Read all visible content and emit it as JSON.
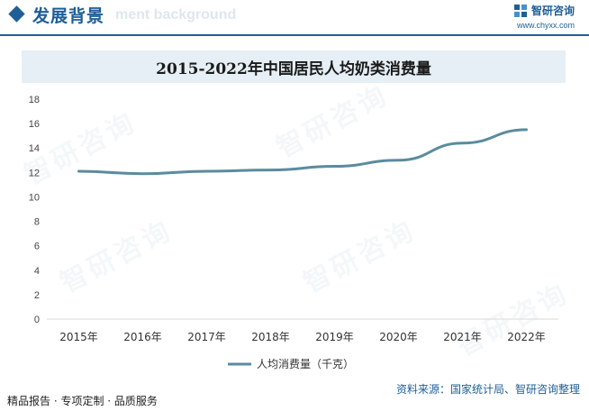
{
  "header": {
    "title": "发展背景",
    "subtitle": "ment background",
    "brand_name": "智研咨询",
    "brand_url": "www.chyxx.com"
  },
  "footer": {
    "left": "精品报告 · 专项定制 · 品质服务",
    "source": "资料来源：国家统计局、智研咨询整理"
  },
  "watermark_text": "智研咨询",
  "colors": {
    "accent": "#1f5f97",
    "line": "#5b8b9e",
    "band": "#e6eff5"
  },
  "chart_data": {
    "type": "line",
    "title": "2015-2022年中国居民人均奶类消费量",
    "categories": [
      "2015年",
      "2016年",
      "2017年",
      "2018年",
      "2019年",
      "2020年",
      "2021年",
      "2022年"
    ],
    "series": [
      {
        "name": "人均消费量（千克）",
        "values": [
          12.1,
          11.9,
          12.1,
          12.2,
          12.5,
          13.0,
          14.4,
          15.5
        ]
      }
    ],
    "ylim": [
      0,
      18
    ],
    "yticks": [
      0,
      2,
      4,
      6,
      8,
      10,
      12,
      14,
      16,
      18
    ],
    "xlabel": "",
    "ylabel": "",
    "grid": false,
    "legend": "bottom-center"
  }
}
